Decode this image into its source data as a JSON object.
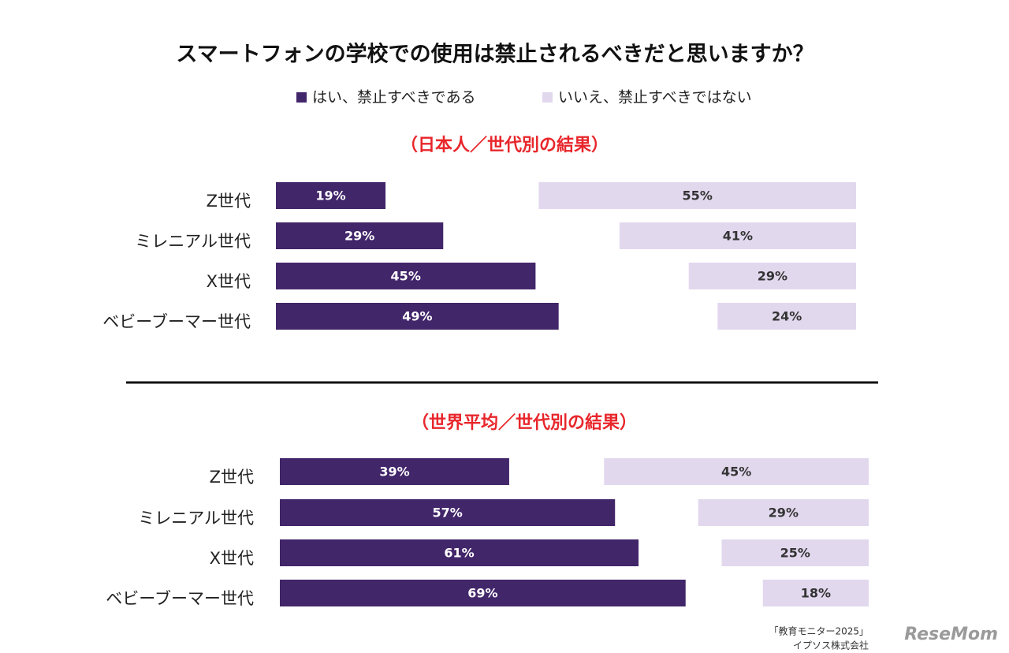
{
  "title": "スマートフォンの学校での使用は禁止されるべきだと思いますか？",
  "source": [
    "「教育モニター2025」",
    "イプソス株式会社"
  ],
  "watermark": "ReseMom",
  "chart_data": [
    {
      "type": "bar",
      "title": "（日本人／世代別の結果）",
      "categories": [
        "Z世代",
        "ミレニアル世代",
        "X世代",
        "ベビーブーマー世代"
      ],
      "series": [
        {
          "name": "はい、禁止すべきである",
          "color": "#42266a",
          "values": [
            19,
            29,
            45,
            49
          ],
          "value_labels": [
            "19%",
            "29%",
            "45%",
            "49%"
          ]
        },
        {
          "name": "いいえ、禁止すべきではない",
          "color": "#e2d8ee",
          "values": [
            55,
            41,
            29,
            24
          ],
          "value_labels": [
            "55%",
            "41%",
            "29%",
            "24%"
          ]
        }
      ]
    },
    {
      "type": "bar",
      "title": "（世界平均／世代別の結果）",
      "categories": [
        "Z世代",
        "ミレニアル世代",
        "X世代",
        "ベビーブーマー世代"
      ],
      "series": [
        {
          "name": "はい、禁止すべきである",
          "color": "#42266a",
          "values": [
            39,
            57,
            61,
            69
          ],
          "value_labels": [
            "39%",
            "57%",
            "61%",
            "69%"
          ]
        },
        {
          "name": "いいえ、禁止すべきではない",
          "color": "#e2d8ee",
          "values": [
            45,
            29,
            25,
            18
          ],
          "value_labels": [
            "45%",
            "29%",
            "25%",
            "18%"
          ]
        }
      ]
    }
  ]
}
